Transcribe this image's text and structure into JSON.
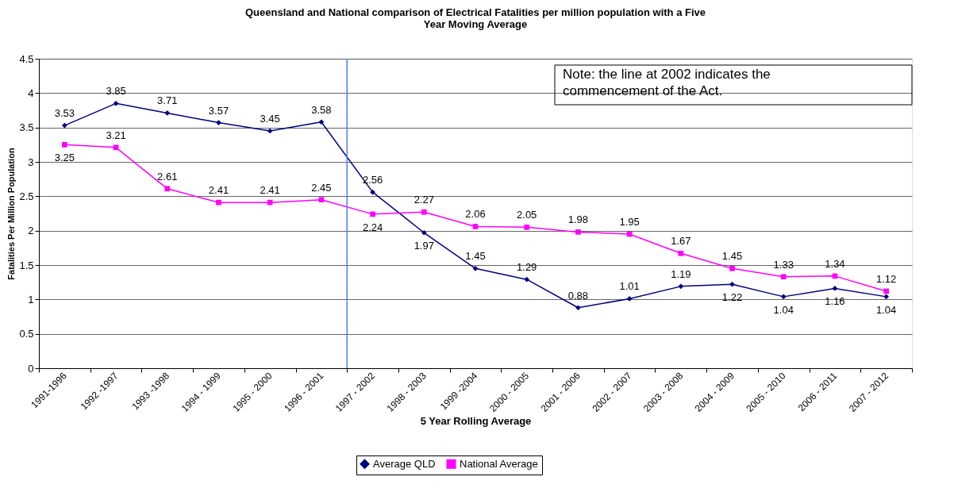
{
  "chart_data": {
    "type": "line",
    "title": "Queensland and National comparison of Electrical Fatalities per million population with a Five Year Moving Average",
    "xlabel": "5 Year Rolling Average",
    "ylabel": "Fatalities Per Million Population",
    "categories": [
      "1991-1996",
      "1992 -1997",
      "1993 -1998",
      "1994 - 1999",
      "1995 - 2000",
      "1996 - 2001",
      "1997 - 2002",
      "1998 - 2003",
      "1999 -2004",
      "2000 - 2005",
      "2001 - 2006",
      "2002 - 2007",
      "2003 - 2008",
      "2004 - 2009",
      "2005 - 2010",
      "2006 - 2011",
      "2007 - 2012"
    ],
    "series": [
      {
        "name": "Average QLD",
        "color": "#000080",
        "marker": "diamond",
        "values": [
          3.53,
          3.85,
          3.71,
          3.57,
          3.45,
          3.58,
          2.56,
          1.97,
          1.45,
          1.29,
          0.88,
          1.01,
          1.19,
          1.22,
          1.04,
          1.16,
          1.04
        ]
      },
      {
        "name": "National Average",
        "color": "#ff00ff",
        "marker": "square",
        "values": [
          3.25,
          3.21,
          2.61,
          2.41,
          2.41,
          2.45,
          2.24,
          2.27,
          2.06,
          2.05,
          1.98,
          1.95,
          1.67,
          1.45,
          1.33,
          1.34,
          1.12
        ]
      }
    ],
    "ylim": [
      0,
      4.5
    ],
    "yticks": [
      0,
      0.5,
      1,
      1.5,
      2,
      2.5,
      3,
      3.5,
      4,
      4.5
    ],
    "grid": "y",
    "legend": "bottom",
    "data_labels": true,
    "ref_lines": [
      {
        "axis": "x",
        "value": "1997 - 2002",
        "color": "#4f81f0"
      }
    ],
    "annotations": [
      "Note: the line at 2002 indicates the commencement of the Act."
    ]
  }
}
